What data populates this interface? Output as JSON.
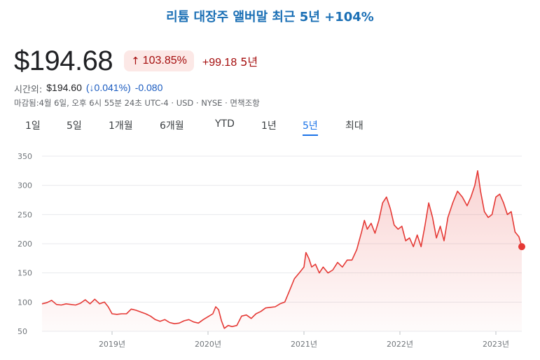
{
  "title": "리튬 대장주 앨버말 최근 5년 +104%",
  "quote": {
    "price": "$194.68",
    "pct_arrow": "↑",
    "pct_change": "103.85%",
    "abs_change": "+99.18",
    "period_label": "5년"
  },
  "after_hours": {
    "label": "시간외:",
    "price": "$194.60",
    "pct": "(↓0.041%)",
    "change": "-0.080"
  },
  "closed_text": "마감됨:4월 6일, 오후 6시 55분 24초 UTC-4 · USD · NYSE · 면책조항",
  "tabs": [
    "1일",
    "5일",
    "1개월",
    "6개월",
    "YTD",
    "1년",
    "5년",
    "최대"
  ],
  "active_tab": 6,
  "colors": {
    "line": "#e53935",
    "accent": "#1a73e8",
    "down": "#a50e0e",
    "title": "#1a6fb5"
  },
  "chart_data": {
    "type": "area",
    "ylim": [
      50,
      350
    ],
    "yticks": [
      50,
      100,
      150,
      200,
      250,
      300,
      350
    ],
    "xticks": [
      {
        "x": 2019.0,
        "label": "2019년"
      },
      {
        "x": 2020.0,
        "label": "2020년"
      },
      {
        "x": 2021.0,
        "label": "2021년"
      },
      {
        "x": 2022.0,
        "label": "2022년"
      },
      {
        "x": 2023.0,
        "label": "2023년"
      }
    ],
    "xlim": [
      2018.27,
      2023.27
    ],
    "grid": true,
    "series": [
      {
        "points": [
          [
            2018.27,
            97
          ],
          [
            2018.32,
            99
          ],
          [
            2018.37,
            103
          ],
          [
            2018.42,
            96
          ],
          [
            2018.47,
            95
          ],
          [
            2018.52,
            97
          ],
          [
            2018.57,
            96
          ],
          [
            2018.62,
            95
          ],
          [
            2018.67,
            98
          ],
          [
            2018.72,
            104
          ],
          [
            2018.77,
            97
          ],
          [
            2018.82,
            105
          ],
          [
            2018.87,
            97
          ],
          [
            2018.92,
            100
          ],
          [
            2018.96,
            92
          ],
          [
            2019.0,
            80
          ],
          [
            2019.05,
            79
          ],
          [
            2019.1,
            80
          ],
          [
            2019.15,
            80
          ],
          [
            2019.2,
            88
          ],
          [
            2019.25,
            86
          ],
          [
            2019.3,
            83
          ],
          [
            2019.35,
            80
          ],
          [
            2019.4,
            76
          ],
          [
            2019.45,
            70
          ],
          [
            2019.5,
            67
          ],
          [
            2019.55,
            70
          ],
          [
            2019.6,
            65
          ],
          [
            2019.65,
            63
          ],
          [
            2019.7,
            64
          ],
          [
            2019.75,
            68
          ],
          [
            2019.8,
            70
          ],
          [
            2019.85,
            66
          ],
          [
            2019.9,
            64
          ],
          [
            2019.95,
            70
          ],
          [
            2020.0,
            75
          ],
          [
            2020.05,
            80
          ],
          [
            2020.08,
            92
          ],
          [
            2020.11,
            87
          ],
          [
            2020.14,
            68
          ],
          [
            2020.17,
            55
          ],
          [
            2020.21,
            60
          ],
          [
            2020.25,
            58
          ],
          [
            2020.3,
            60
          ],
          [
            2020.35,
            76
          ],
          [
            2020.4,
            78
          ],
          [
            2020.45,
            72
          ],
          [
            2020.5,
            80
          ],
          [
            2020.55,
            84
          ],
          [
            2020.6,
            90
          ],
          [
            2020.65,
            91
          ],
          [
            2020.7,
            92
          ],
          [
            2020.75,
            97
          ],
          [
            2020.8,
            100
          ],
          [
            2020.85,
            120
          ],
          [
            2020.9,
            140
          ],
          [
            2020.95,
            150
          ],
          [
            2021.0,
            160
          ],
          [
            2021.02,
            185
          ],
          [
            2021.05,
            175
          ],
          [
            2021.08,
            160
          ],
          [
            2021.12,
            165
          ],
          [
            2021.16,
            150
          ],
          [
            2021.2,
            160
          ],
          [
            2021.25,
            150
          ],
          [
            2021.3,
            155
          ],
          [
            2021.35,
            168
          ],
          [
            2021.4,
            160
          ],
          [
            2021.45,
            172
          ],
          [
            2021.5,
            172
          ],
          [
            2021.55,
            190
          ],
          [
            2021.6,
            220
          ],
          [
            2021.63,
            240
          ],
          [
            2021.66,
            225
          ],
          [
            2021.7,
            235
          ],
          [
            2021.74,
            218
          ],
          [
            2021.78,
            240
          ],
          [
            2021.82,
            270
          ],
          [
            2021.86,
            280
          ],
          [
            2021.9,
            260
          ],
          [
            2021.94,
            232
          ],
          [
            2021.98,
            225
          ],
          [
            2022.02,
            230
          ],
          [
            2022.06,
            205
          ],
          [
            2022.1,
            210
          ],
          [
            2022.14,
            195
          ],
          [
            2022.18,
            215
          ],
          [
            2022.22,
            195
          ],
          [
            2022.26,
            230
          ],
          [
            2022.3,
            270
          ],
          [
            2022.34,
            245
          ],
          [
            2022.38,
            210
          ],
          [
            2022.42,
            230
          ],
          [
            2022.46,
            205
          ],
          [
            2022.5,
            245
          ],
          [
            2022.55,
            270
          ],
          [
            2022.6,
            290
          ],
          [
            2022.65,
            280
          ],
          [
            2022.7,
            265
          ],
          [
            2022.74,
            280
          ],
          [
            2022.78,
            300
          ],
          [
            2022.81,
            325
          ],
          [
            2022.84,
            290
          ],
          [
            2022.88,
            255
          ],
          [
            2022.92,
            245
          ],
          [
            2022.96,
            250
          ],
          [
            2023.0,
            280
          ],
          [
            2023.04,
            285
          ],
          [
            2023.08,
            270
          ],
          [
            2023.12,
            250
          ],
          [
            2023.16,
            255
          ],
          [
            2023.2,
            220
          ],
          [
            2023.24,
            212
          ],
          [
            2023.27,
            195
          ]
        ]
      }
    ]
  }
}
